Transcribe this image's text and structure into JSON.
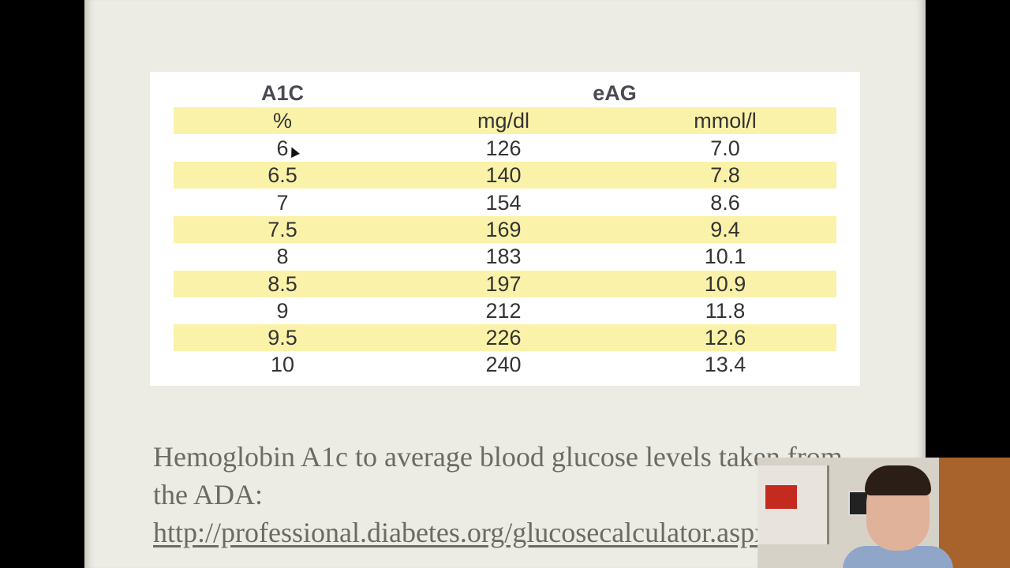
{
  "table": {
    "headers": {
      "a1c": "A1C",
      "eag": "eAG"
    },
    "units": {
      "a1c": "%",
      "mgdl": "mg/dl",
      "mmol": "mmol/l"
    },
    "rows": [
      {
        "a1c": "6",
        "mgdl": "126",
        "mmol": "7.0"
      },
      {
        "a1c": "6.5",
        "mgdl": "140",
        "mmol": "7.8"
      },
      {
        "a1c": "7",
        "mgdl": "154",
        "mmol": "8.6"
      },
      {
        "a1c": "7.5",
        "mgdl": "169",
        "mmol": "9.4"
      },
      {
        "a1c": "8",
        "mgdl": "183",
        "mmol": "10.1"
      },
      {
        "a1c": "8.5",
        "mgdl": "197",
        "mmol": "10.9"
      },
      {
        "a1c": "9",
        "mgdl": "212",
        "mmol": "11.8"
      },
      {
        "a1c": "9.5",
        "mgdl": "226",
        "mmol": "12.6"
      },
      {
        "a1c": "10",
        "mgdl": "240",
        "mmol": "13.4"
      }
    ]
  },
  "caption": {
    "text": "Hemoglobin A1c to average blood glucose levels taken from the ADA: ",
    "link": "http://professional.diabetes.org/glucosecalculator.aspx"
  },
  "colors": {
    "row_shade": "#fbf2a9",
    "slide_bg": "#ecebe4"
  },
  "icons": {
    "cursor": "mouse-pointer-icon"
  }
}
